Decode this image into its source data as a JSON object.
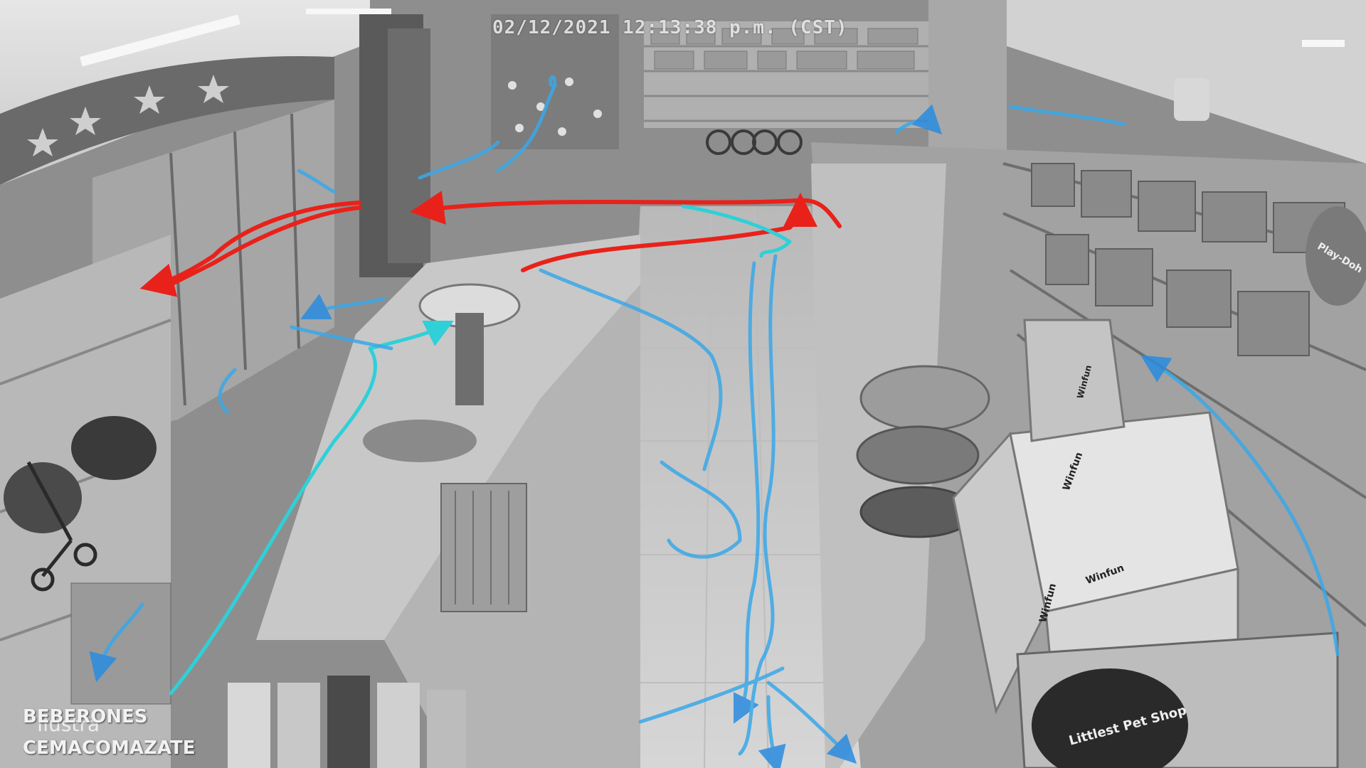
{
  "overlay": {
    "timestamp": "02/12/2021 12:13:38 p.m. (CST)",
    "label_top": "BEBERONES",
    "label_bottom": "CEMACOMAZATE",
    "watermark": "Ilustra"
  },
  "store_signs": {
    "product_box_1": "Winfun",
    "product_box_2": "Winfun",
    "product_box_3": "Winfun",
    "product_box_4": "Winfun",
    "product_display": "Littlest Pet Shop",
    "play_doh": "Play-Doh"
  },
  "paths": {
    "red_color": "#e8221a",
    "cyan_color": "#2fd0d8",
    "blue_color": "#2a8ce0",
    "light_blue_color": "#3aa8e8"
  }
}
